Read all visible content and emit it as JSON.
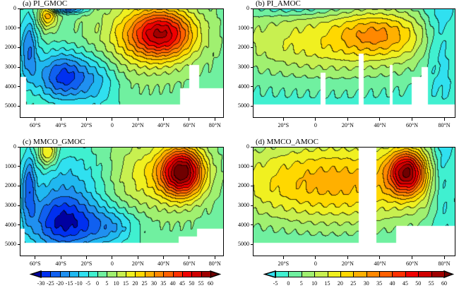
{
  "chart_data": [
    {
      "type": "heatmap",
      "subtype": "filled-contour",
      "title": "(a) PI_GMOC",
      "xlim": [
        -72,
        87
      ],
      "ylim": [
        0,
        5600
      ],
      "y_inverted": true,
      "x_ticks": [
        {
          "value": -60,
          "label": "60°S"
        },
        {
          "value": -40,
          "label": "40°S"
        },
        {
          "value": -20,
          "label": "20°S"
        },
        {
          "value": 0,
          "label": "0"
        },
        {
          "value": 20,
          "label": "20°N"
        },
        {
          "value": 40,
          "label": "40°N"
        },
        {
          "value": 60,
          "label": "60°N"
        },
        {
          "value": 80,
          "label": "80°N"
        }
      ],
      "y_ticks": [
        {
          "value": 0,
          "label": "0"
        },
        {
          "value": 1000,
          "label": "1000"
        },
        {
          "value": 2000,
          "label": "2000"
        },
        {
          "value": 3000,
          "label": "3000"
        },
        {
          "value": 4000,
          "label": "4000"
        },
        {
          "value": 5000,
          "label": "5000"
        }
      ],
      "base": 3,
      "features": [
        {
          "lat": 40,
          "depth": 1300,
          "slat": 18,
          "sdep": 900,
          "amp": 42
        },
        {
          "lat": 20,
          "depth": 1500,
          "slat": 25,
          "sdep": 1300,
          "amp": 15
        },
        {
          "lat": -38,
          "depth": 3500,
          "slat": 15,
          "sdep": 900,
          "amp": -30
        },
        {
          "lat": -10,
          "depth": 3800,
          "slat": 12,
          "sdep": 1000,
          "amp": -12
        },
        {
          "lat": -65,
          "depth": 2000,
          "slat": 5,
          "sdep": 1200,
          "amp": -22
        },
        {
          "lat": -50,
          "depth": 300,
          "slat": 5,
          "sdep": 500,
          "amp": 25
        },
        {
          "lat": -35,
          "depth": 50,
          "slat": 10,
          "sdep": 150,
          "amp": -25
        }
      ],
      "missing": [
        [
          53,
          87,
          4100,
          5600
        ],
        [
          60,
          68,
          2900,
          5600
        ],
        [
          -72,
          -67,
          3500,
          5600
        ],
        [
          -72,
          87,
          4900,
          5600
        ]
      ],
      "colorbar": 0
    },
    {
      "type": "heatmap",
      "subtype": "filled-contour",
      "title": "(b) PI_AMOC",
      "xlim": [
        -39,
        87
      ],
      "ylim": [
        0,
        5600
      ],
      "y_inverted": true,
      "x_ticks": [
        {
          "value": -20,
          "label": "20°S"
        },
        {
          "value": 0,
          "label": "0"
        },
        {
          "value": 20,
          "label": "20°N"
        },
        {
          "value": 40,
          "label": "40°N"
        },
        {
          "value": 60,
          "label": "60°N"
        },
        {
          "value": 80,
          "label": "80°N"
        }
      ],
      "y_ticks": [
        {
          "value": 0,
          "label": "0"
        },
        {
          "value": 1000,
          "label": "1000"
        },
        {
          "value": 2000,
          "label": "2000"
        },
        {
          "value": 3000,
          "label": "3000"
        },
        {
          "value": 4000,
          "label": "4000"
        },
        {
          "value": 5000,
          "label": "5000"
        }
      ],
      "base": -2,
      "features": [
        {
          "lat": 40,
          "depth": 1300,
          "slat": 18,
          "sdep": 800,
          "amp": 18
        },
        {
          "lat": 10,
          "depth": 1700,
          "slat": 50,
          "sdep": 1300,
          "amp": 20
        },
        {
          "lat": -10,
          "depth": 0,
          "slat": 20,
          "sdep": 300,
          "amp": -8
        },
        {
          "lat": 78,
          "depth": 1500,
          "slat": 8,
          "sdep": 2000,
          "amp": -12
        }
      ],
      "missing": [
        [
          -39,
          87,
          4900,
          5600
        ],
        [
          3,
          6,
          3300,
          5600
        ],
        [
          27,
          30,
          2300,
          5600
        ],
        [
          46,
          48,
          2900,
          5600
        ],
        [
          60,
          67,
          3500,
          5600
        ],
        [
          66,
          70,
          3000,
          5600
        ]
      ],
      "colorbar": 1
    },
    {
      "type": "heatmap",
      "subtype": "filled-contour",
      "title": "(c) MMCO_GMOC",
      "xlim": [
        -72,
        87
      ],
      "ylim": [
        0,
        5600
      ],
      "y_inverted": true,
      "x_ticks": [
        {
          "value": -60,
          "label": "60°S"
        },
        {
          "value": -40,
          "label": "40°S"
        },
        {
          "value": -20,
          "label": "20°S"
        },
        {
          "value": 0,
          "label": "0"
        },
        {
          "value": 20,
          "label": "20°N"
        },
        {
          "value": 40,
          "label": "40°N"
        },
        {
          "value": 60,
          "label": "60°N"
        },
        {
          "value": 80,
          "label": "80°N"
        }
      ],
      "y_ticks": [
        {
          "value": 0,
          "label": "0"
        },
        {
          "value": 1000,
          "label": "1000"
        },
        {
          "value": 2000,
          "label": "2000"
        },
        {
          "value": 3000,
          "label": "3000"
        },
        {
          "value": 4000,
          "label": "4000"
        },
        {
          "value": 5000,
          "label": "5000"
        }
      ],
      "base": 3,
      "features": [
        {
          "lat": 55,
          "depth": 1300,
          "slat": 12,
          "sdep": 900,
          "amp": 55
        },
        {
          "lat": 25,
          "depth": 1500,
          "slat": 25,
          "sdep": 1300,
          "amp": 15
        },
        {
          "lat": -38,
          "depth": 3900,
          "slat": 20,
          "sdep": 1100,
          "amp": -33
        },
        {
          "lat": 0,
          "depth": 4100,
          "slat": 15,
          "sdep": 700,
          "amp": -15
        },
        {
          "lat": -65,
          "depth": 2000,
          "slat": 4,
          "sdep": 1200,
          "amp": -20
        },
        {
          "lat": -50,
          "depth": 300,
          "slat": 5,
          "sdep": 500,
          "amp": 22
        },
        {
          "lat": -30,
          "depth": 1500,
          "slat": 25,
          "sdep": 1200,
          "amp": -12
        }
      ],
      "missing": [
        [
          -72,
          87,
          4900,
          5600
        ],
        [
          -72,
          -68,
          4200,
          5600
        ],
        [
          66,
          87,
          4200,
          5600
        ],
        [
          52,
          87,
          4600,
          5600
        ]
      ],
      "colorbar": 0
    },
    {
      "type": "heatmap",
      "subtype": "filled-contour",
      "title": "(d) MMCO_AMOC",
      "xlim": [
        -39,
        87
      ],
      "ylim": [
        0,
        5600
      ],
      "y_inverted": true,
      "x_ticks": [
        {
          "value": -20,
          "label": "20°S"
        },
        {
          "value": 0,
          "label": "0"
        },
        {
          "value": 20,
          "label": "20°N"
        },
        {
          "value": 40,
          "label": "40°N"
        },
        {
          "value": 60,
          "label": "60°N"
        },
        {
          "value": 80,
          "label": "80°N"
        }
      ],
      "y_ticks": [
        {
          "value": 0,
          "label": "0"
        },
        {
          "value": 1000,
          "label": "1000"
        },
        {
          "value": 2000,
          "label": "2000"
        },
        {
          "value": 3000,
          "label": "3000"
        },
        {
          "value": 4000,
          "label": "4000"
        },
        {
          "value": 5000,
          "label": "5000"
        }
      ],
      "base": -2,
      "features": [
        {
          "lat": 57,
          "depth": 1300,
          "slat": 8,
          "sdep": 800,
          "amp": 45
        },
        {
          "lat": 5,
          "depth": 1800,
          "slat": 50,
          "sdep": 1600,
          "amp": 22
        },
        {
          "lat": 30,
          "depth": 1800,
          "slat": 50,
          "sdep": 1600,
          "amp": 8
        },
        {
          "lat": 80,
          "depth": 1500,
          "slat": 6,
          "sdep": 2000,
          "amp": -15
        }
      ],
      "missing": [
        [
          27,
          38,
          0,
          5600
        ],
        [
          50,
          87,
          4050,
          5600
        ],
        [
          -39,
          87,
          4900,
          5600
        ]
      ],
      "colorbar": 1
    }
  ],
  "colorbars": [
    {
      "labels": [
        "-30",
        "-25",
        "-20",
        "-15",
        "-10",
        "-5",
        "0",
        "5",
        "10",
        "15",
        "20",
        "25",
        "30",
        "35",
        "40",
        "45",
        "50",
        "55",
        "60"
      ],
      "start_level": -30,
      "step": 5
    },
    {
      "labels": [
        "-5",
        "0",
        "5",
        "10",
        "15",
        "20",
        "25",
        "30",
        "35",
        "40",
        "45",
        "50",
        "55",
        "60"
      ],
      "start_level": -5,
      "step": 5
    }
  ],
  "palette": [
    "#0000a0",
    "#0030f0",
    "#1060f0",
    "#2090f0",
    "#20b8f0",
    "#30e0f0",
    "#40f0d0",
    "#70f0a0",
    "#a0f070",
    "#c8f050",
    "#f0f020",
    "#ffd800",
    "#ffb000",
    "#ff8800",
    "#ff6000",
    "#ff3000",
    "#f00000",
    "#d00000",
    "#a00000",
    "#700000"
  ]
}
